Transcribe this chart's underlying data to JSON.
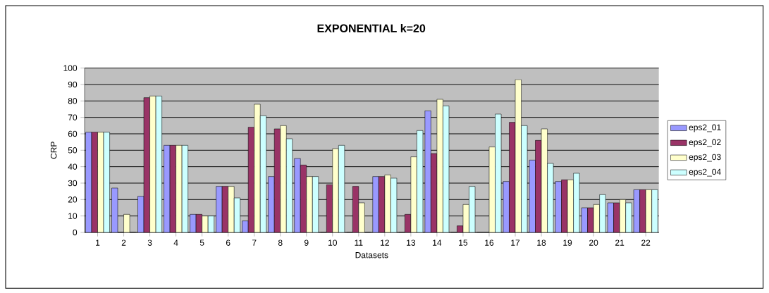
{
  "chart_data": {
    "type": "bar",
    "title": "EXPONENTIAL k=20",
    "xlabel": "Datasets",
    "ylabel": "CRP",
    "categories": [
      "1",
      "2",
      "3",
      "4",
      "5",
      "6",
      "7",
      "8",
      "9",
      "10",
      "11",
      "12",
      "13",
      "14",
      "15",
      "16",
      "17",
      "18",
      "19",
      "20",
      "21",
      "22"
    ],
    "series": [
      {
        "name": "eps2_01",
        "color": "#9999ff",
        "values": [
          61,
          27,
          22,
          53,
          11,
          28,
          7,
          34,
          45,
          0,
          0,
          34,
          0,
          74,
          0,
          0,
          31,
          44,
          31,
          15,
          18,
          26
        ]
      },
      {
        "name": "eps2_02",
        "color": "#993366",
        "values": [
          61,
          0,
          82,
          53,
          11,
          28,
          64,
          63,
          41,
          29,
          28,
          34,
          11,
          48,
          4,
          0,
          67,
          56,
          32,
          15,
          18,
          26
        ]
      },
      {
        "name": "eps2_03",
        "color": "#ffffcc",
        "values": [
          61,
          11,
          83,
          53,
          10,
          28,
          78,
          65,
          34,
          51,
          18,
          35,
          46,
          81,
          17,
          52,
          93,
          63,
          32,
          17,
          20,
          26
        ]
      },
      {
        "name": "eps2_04",
        "color": "#ccffff",
        "values": [
          61,
          0,
          83,
          53,
          10,
          21,
          71,
          57,
          34,
          53,
          0,
          33,
          62,
          77,
          28,
          72,
          65,
          42,
          36,
          23,
          18,
          26
        ]
      }
    ],
    "ylim": [
      0,
      100
    ],
    "yticks": [
      0,
      10,
      20,
      30,
      40,
      50,
      60,
      70,
      80,
      90,
      100
    ],
    "grid": "y",
    "legend": "right"
  }
}
